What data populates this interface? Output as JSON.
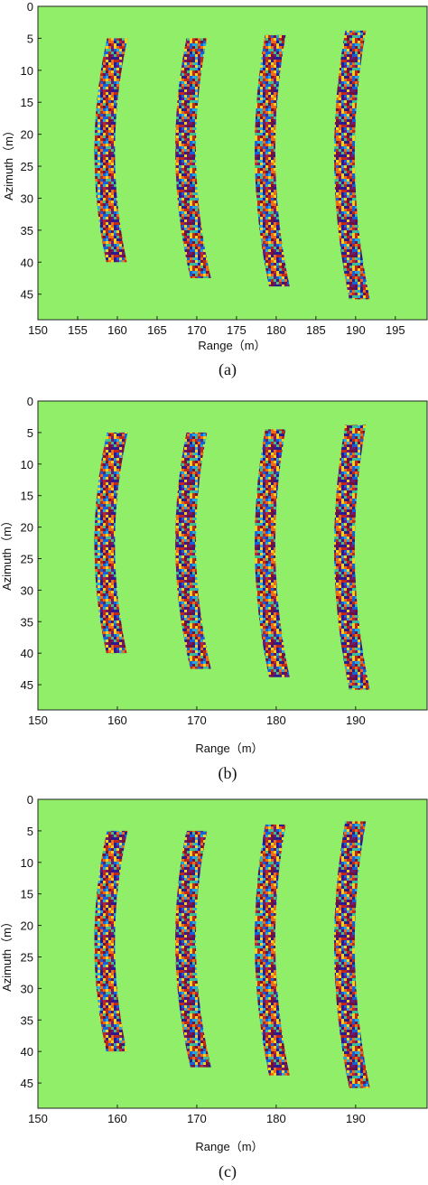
{
  "colors": {
    "background": "#90ee68",
    "stripe_palette": [
      "#2b1b8f",
      "#7a1030",
      "#c0281a",
      "#ef6a1a",
      "#f2d21c",
      "#25a8e0",
      "#1560d8",
      "#6a1a7a",
      "#3bbf8f"
    ]
  },
  "chart_data": [
    {
      "panel": "a",
      "caption": "(a)",
      "type": "heatmap",
      "xlabel": "Range（m）",
      "ylabel": "Azimuth（m）",
      "xlim": [
        150,
        199
      ],
      "ylim": [
        0,
        49
      ],
      "y_inverted": true,
      "x_ticks": [
        150,
        155,
        160,
        165,
        170,
        175,
        180,
        185,
        190,
        195
      ],
      "y_ticks": [
        0,
        5,
        10,
        15,
        20,
        25,
        30,
        35,
        40,
        45
      ],
      "stripes": [
        {
          "az_top": 5.0,
          "az_bottom": 40.0,
          "range_center_top": 160.0,
          "range_center_mid": 158.4,
          "range_center_bottom": 159.9,
          "width": 2.6
        },
        {
          "az_top": 5.0,
          "az_bottom": 42.5,
          "range_center_top": 170.0,
          "range_center_mid": 168.6,
          "range_center_bottom": 170.5,
          "width": 2.6
        },
        {
          "az_top": 4.5,
          "az_bottom": 43.8,
          "range_center_top": 179.9,
          "range_center_mid": 178.6,
          "range_center_bottom": 180.4,
          "width": 2.6
        },
        {
          "az_top": 3.8,
          "az_bottom": 45.8,
          "range_center_top": 190.0,
          "range_center_mid": 188.6,
          "range_center_bottom": 190.5,
          "width": 2.6
        }
      ]
    },
    {
      "panel": "b",
      "caption": "(b)",
      "type": "heatmap",
      "xlabel": "Range（m）",
      "ylabel": "Azimuth（m）",
      "xlim": [
        150,
        199
      ],
      "ylim": [
        0,
        49
      ],
      "y_inverted": true,
      "x_ticks": [
        150,
        160,
        170,
        180,
        190
      ],
      "y_ticks": [
        0,
        5,
        10,
        15,
        20,
        25,
        30,
        35,
        40,
        45
      ],
      "stripes": [
        {
          "az_top": 5.0,
          "az_bottom": 40.0,
          "range_center_top": 160.0,
          "range_center_mid": 158.4,
          "range_center_bottom": 159.9,
          "width": 2.6
        },
        {
          "az_top": 5.0,
          "az_bottom": 42.5,
          "range_center_top": 170.0,
          "range_center_mid": 168.6,
          "range_center_bottom": 170.5,
          "width": 2.6
        },
        {
          "az_top": 4.5,
          "az_bottom": 43.8,
          "range_center_top": 179.9,
          "range_center_mid": 178.6,
          "range_center_bottom": 180.4,
          "width": 2.6
        },
        {
          "az_top": 3.8,
          "az_bottom": 45.8,
          "range_center_top": 190.0,
          "range_center_mid": 188.6,
          "range_center_bottom": 190.5,
          "width": 2.6
        }
      ]
    },
    {
      "panel": "c",
      "caption": "(c)",
      "type": "heatmap",
      "xlabel": "Range（m）",
      "ylabel": "Azimuth（m）",
      "xlim": [
        150,
        199
      ],
      "ylim": [
        0,
        49
      ],
      "y_inverted": true,
      "x_ticks": [
        150,
        160,
        170,
        180,
        190
      ],
      "y_ticks": [
        0,
        5,
        10,
        15,
        20,
        25,
        30,
        35,
        40,
        45
      ],
      "stripes": [
        {
          "az_top": 5.0,
          "az_bottom": 40.0,
          "range_center_top": 160.0,
          "range_center_mid": 158.4,
          "range_center_bottom": 159.9,
          "width": 2.6
        },
        {
          "az_top": 5.0,
          "az_bottom": 42.5,
          "range_center_top": 170.0,
          "range_center_mid": 168.6,
          "range_center_bottom": 170.5,
          "width": 2.6
        },
        {
          "az_top": 4.0,
          "az_bottom": 43.8,
          "range_center_top": 179.9,
          "range_center_mid": 178.6,
          "range_center_bottom": 180.4,
          "width": 2.6
        },
        {
          "az_top": 3.5,
          "az_bottom": 45.8,
          "range_center_top": 190.0,
          "range_center_mid": 188.6,
          "range_center_bottom": 190.5,
          "width": 2.6
        }
      ]
    }
  ]
}
